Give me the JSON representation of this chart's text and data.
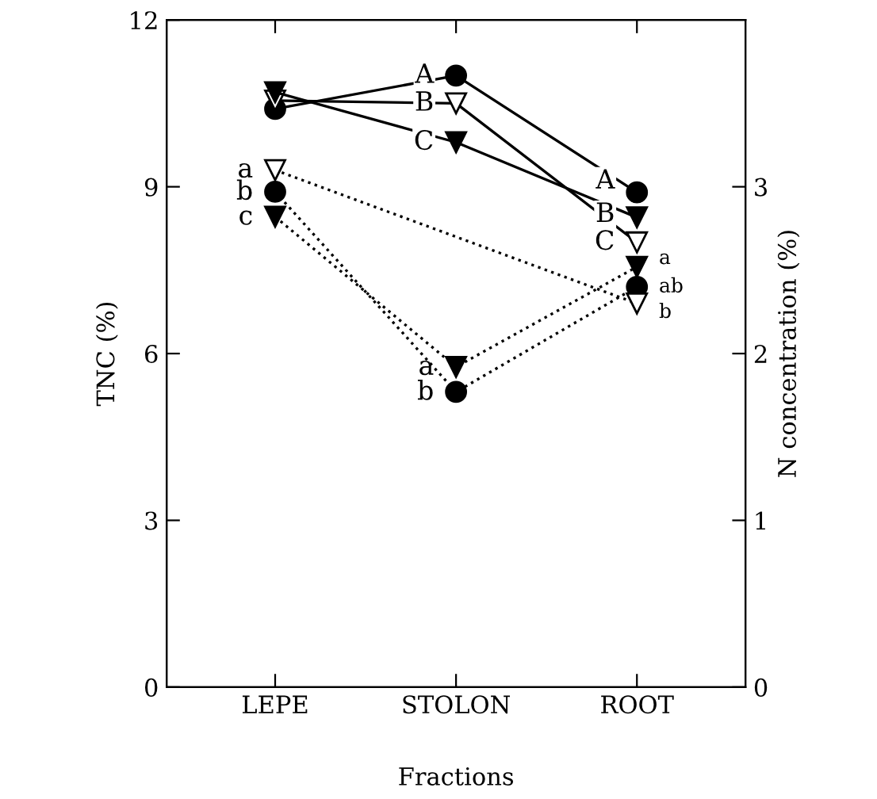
{
  "chart_data": {
    "type": "line",
    "xlabel": "Fractions",
    "ylabel": "TNC (%)",
    "y2label": "N concentration (%)",
    "categories": [
      "LEPE",
      "STOLON",
      "ROOT"
    ],
    "ylim": [
      0,
      12
    ],
    "yticks": [
      0,
      3,
      6,
      9,
      12
    ],
    "y2lim": [
      0,
      4
    ],
    "y2ticks": [
      0,
      1,
      2,
      3
    ],
    "grid": false,
    "legend": false,
    "series": [
      {
        "color": "#000000",
        "marker": "circle",
        "line_style": "solid",
        "values": [
          10.4,
          11.0,
          8.9
        ]
      },
      {
        "color": "#ffffff",
        "marker": "triangle",
        "line_style": "solid",
        "values": [
          10.55,
          10.5,
          8.0
        ]
      },
      {
        "color": "#000000",
        "marker": "triangle",
        "line_style": "solid",
        "values": [
          10.7,
          9.8,
          8.45
        ]
      },
      {
        "color": "#000000",
        "marker": "circle",
        "line_style": "dotted",
        "axis": "y2",
        "values": [
          2.97,
          1.77,
          2.4
        ]
      },
      {
        "color": "#ffffff",
        "marker": "triangle",
        "line_style": "dotted",
        "axis": "y2",
        "values": [
          3.1,
          null,
          2.3
        ]
      },
      {
        "color": "#000000",
        "marker": "triangle",
        "line_style": "dotted",
        "axis": "y2",
        "values": [
          2.82,
          1.92,
          2.52
        ]
      }
    ],
    "annotations": [
      {
        "text": "A",
        "x": "STOLON",
        "y": 11.0
      },
      {
        "text": "B",
        "x": "STOLON",
        "y": 10.5
      },
      {
        "text": "C",
        "x": "STOLON",
        "y": 9.8
      },
      {
        "text": "A",
        "x": "ROOT",
        "y": 9.1
      },
      {
        "text": "B",
        "x": "ROOT",
        "y": 8.5
      },
      {
        "text": "C",
        "x": "ROOT",
        "y": 8.0
      },
      {
        "text": "a",
        "x": "LEPE",
        "y": 9.3
      },
      {
        "text": "b",
        "x": "LEPE",
        "y": 8.9
      },
      {
        "text": "c",
        "x": "LEPE",
        "y": 8.45
      },
      {
        "text": "a",
        "x": "STOLON",
        "y": 5.75
      },
      {
        "text": "b",
        "x": "STOLON",
        "y": 5.3
      },
      {
        "text": "a",
        "x": "ROOT",
        "y": 7.55
      },
      {
        "text": "ab",
        "x": "ROOT",
        "y": 7.2
      },
      {
        "text": "b",
        "x": "ROOT",
        "y": 6.9
      }
    ]
  }
}
